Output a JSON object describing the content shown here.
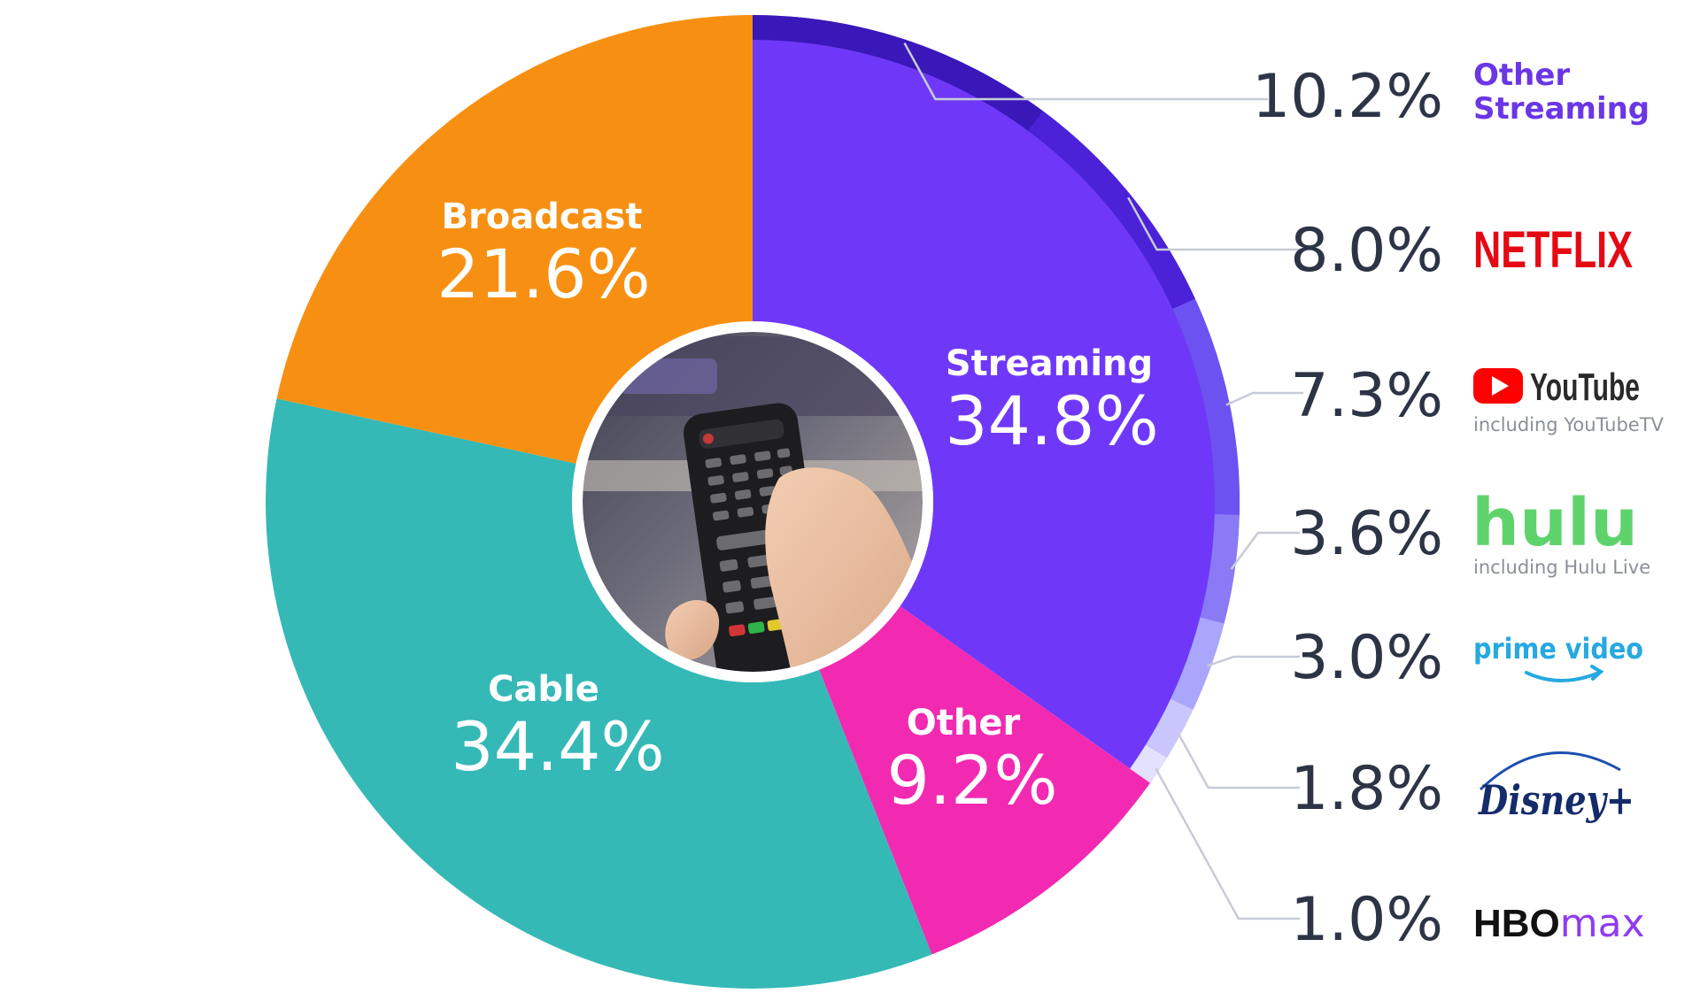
{
  "chart_data": {
    "type": "pie",
    "title": "",
    "colors": {
      "Streaming": "#6f38f8",
      "Other": "#f22ab1",
      "Cable": "#35b9b7",
      "Broadcast": "#f79012",
      "breakdown": [
        "#3a17b8",
        "#4c22d8",
        "#6c52f0",
        "#8b7af5",
        "#a9a6fb",
        "#c9c6fd",
        "#e3e1fe"
      ],
      "leader": "#c7cbd6"
    },
    "slices": [
      {
        "name": "Streaming",
        "value": 34.8,
        "label": "34.8%"
      },
      {
        "name": "Other",
        "value": 9.2,
        "label": "9.2%"
      },
      {
        "name": "Cable",
        "value": 34.4,
        "label": "34.4%"
      },
      {
        "name": "Broadcast",
        "value": 21.6,
        "label": "21.6%"
      }
    ],
    "streaming_breakdown": [
      {
        "brand": "Other Streaming",
        "brand_lines": [
          "Other",
          "Streaming"
        ],
        "value": 10.2,
        "label": "10.2%",
        "icon": "other-streaming-text"
      },
      {
        "brand": "NETFLIX",
        "value": 8.0,
        "label": "8.0%",
        "icon": "netflix-logo"
      },
      {
        "brand": "YouTube",
        "note": "including YouTubeTV",
        "value": 7.3,
        "label": "7.3%",
        "icon": "youtube-logo"
      },
      {
        "brand": "hulu",
        "note": "including Hulu Live",
        "value": 3.6,
        "label": "3.6%",
        "icon": "hulu-logo"
      },
      {
        "brand": "prime video",
        "value": 3.0,
        "label": "3.0%",
        "icon": "prime-video-logo"
      },
      {
        "brand": "Disney+",
        "value": 1.8,
        "label": "1.8%",
        "icon": "disney-plus-logo"
      },
      {
        "brand": "HBO max",
        "brand_parts": [
          "HBO",
          "max"
        ],
        "value": 1.0,
        "label": "1.0%",
        "icon": "hbo-max-logo"
      }
    ],
    "center_image": "tv-remote-photo",
    "legend": "none"
  }
}
